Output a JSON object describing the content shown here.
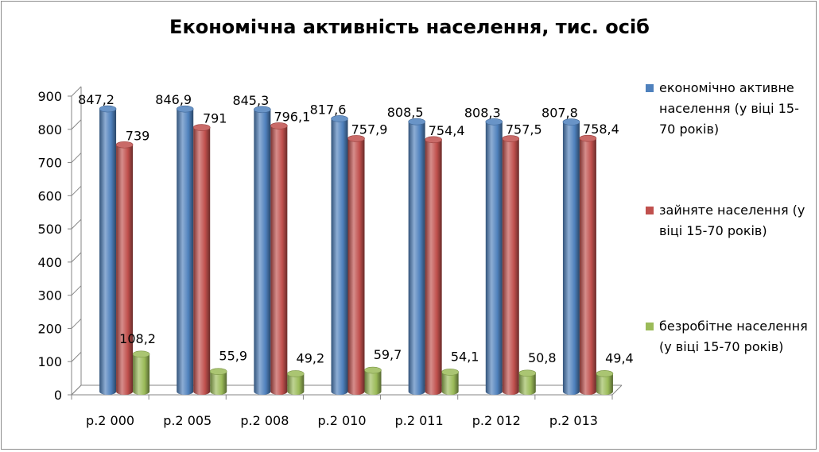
{
  "chart_data": {
    "type": "bar",
    "title": "Економічна активність населення, тис. осіб",
    "categories": [
      "р.2 000",
      "р.2 005",
      "р.2 008",
      "р.2 010",
      "р.2 011",
      "р.2 012",
      "р.2 013"
    ],
    "series": [
      {
        "name": "економічно активне населення (у віці 15-70 років)",
        "color": "#4f81bd",
        "values": [
          847.2,
          846.9,
          845.3,
          817.6,
          808.5,
          808.3,
          807.8
        ],
        "labels": [
          "847,2",
          "846,9",
          "845,3",
          "817,6",
          "808,5",
          "808,3",
          "807,8"
        ]
      },
      {
        "name": "зайняте населення (у віці 15-70 років)",
        "color": "#c0504d",
        "values": [
          739,
          791,
          796.1,
          757.9,
          754.4,
          757.5,
          758.4
        ],
        "labels": [
          "739",
          "791",
          "796,1",
          "757,9",
          "754,4",
          "757,5",
          "758,4"
        ]
      },
      {
        "name": "безробітне населення (у віці 15-70 років)",
        "color": "#9bbb59",
        "values": [
          108.2,
          55.9,
          49.2,
          59.7,
          54.1,
          50.8,
          49.4
        ],
        "labels": [
          "108,2",
          "55,9",
          "49,2",
          "59,7",
          "54,1",
          "50,8",
          "49,4"
        ]
      }
    ],
    "ylim": [
      0,
      900
    ],
    "yticks": [
      0,
      100,
      200,
      300,
      400,
      500,
      600,
      700,
      800,
      900
    ],
    "grid": false,
    "legend": "right",
    "style": "3d-cylinder"
  },
  "legend": {
    "items": [
      {
        "text": "економічно активне населення (у віці 15-70 років)",
        "color": "#4f81bd"
      },
      {
        "text": "зайняте населення (у віці 15-70 років)",
        "color": "#c0504d"
      },
      {
        "text": "безробітне населення (у віці 15-70 років)",
        "color": "#9bbb59"
      }
    ]
  }
}
